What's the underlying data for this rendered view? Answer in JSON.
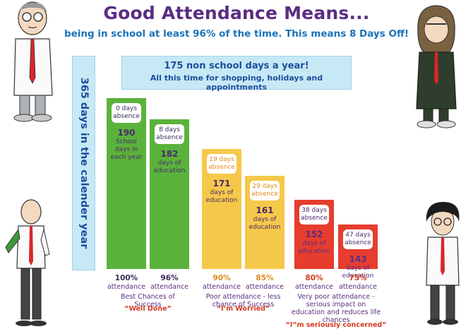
{
  "header": {
    "title": "Good Attendance Means...",
    "subtitle": "being in school at least 96% of the time. This means 8 Days Off!"
  },
  "banner": {
    "line1": "175 non school days a year!",
    "line2": "All this time for shopping, holidays and appointments"
  },
  "side_label": "365 days in the calender year",
  "chart_data": {
    "type": "bar",
    "title": "Good Attendance Means...",
    "xlabel": "",
    "ylabel": "",
    "ylim": [
      0,
      190
    ],
    "categories": [
      "100%",
      "96%",
      "90%",
      "85%",
      "80%",
      "75%"
    ],
    "series": [
      {
        "values": [
          190,
          182,
          171,
          161,
          152,
          143
        ]
      }
    ],
    "bars": [
      {
        "absence": "0 days absence",
        "days": "190",
        "days_label": "School days in each year",
        "percent": "100%",
        "attendance": "attendance",
        "color": "#5ab23b",
        "text_color": "#5a2d82"
      },
      {
        "absence": "8 days absence",
        "days": "182",
        "days_label": "days of education",
        "percent": "96%",
        "attendance": "attendance",
        "color": "#5ab23b",
        "text_color": "#5a2d82"
      },
      {
        "absence": "19 days absence",
        "days": "171",
        "days_label": "days of education",
        "percent": "90%",
        "attendance": "attendance",
        "color": "#f6c84a",
        "text_color": "#5a2d82"
      },
      {
        "absence": "29 days absence",
        "days": "161",
        "days_label": "days of education",
        "percent": "85%",
        "attendance": "attendance",
        "color": "#f6c84a",
        "text_color": "#5a2d82"
      },
      {
        "absence": "38 days absence",
        "days": "152",
        "days_label": "days of education",
        "percent": "80%",
        "attendance": "attendance",
        "color": "#e63d2e",
        "text_color": "#5a2d82"
      },
      {
        "absence": "47 days absence",
        "days": "143",
        "days_label": "days of education",
        "percent": "75%",
        "attendance": "attendance",
        "color": "#e63d2e",
        "text_color": "#5a2d82"
      }
    ],
    "groups": [
      {
        "caption": "Best Chances of Success",
        "quote": "“Well Done”"
      },
      {
        "caption": "Poor attendance - less chance of Success",
        "quote": "“I’m Worried”"
      },
      {
        "caption": "Very poor attendance - serious impact on education and reduces life chances",
        "quote": "“I”m seriously concerned”"
      }
    ]
  }
}
